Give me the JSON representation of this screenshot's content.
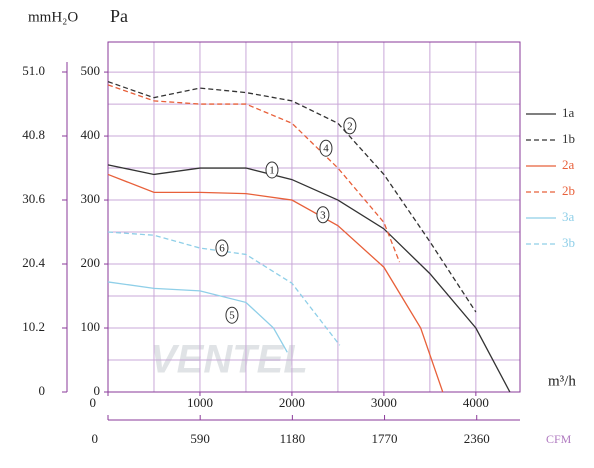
{
  "chart_data": {
    "type": "line",
    "y_unit": "Pa",
    "y2_unit": "mmH₂O",
    "x_unit": "m³/h",
    "x2_unit": "CFM",
    "watermark": "VENTEL",
    "xlim": [
      0,
      4480
    ],
    "ylim": [
      0,
      547
    ],
    "y2lim": [
      0,
      55.78
    ],
    "x2lim": [
      0,
      2637
    ],
    "xticks": [
      0,
      1000,
      2000,
      3000,
      4000
    ],
    "yticks": [
      0,
      100,
      200,
      300,
      400,
      500
    ],
    "y2ticks": [
      0,
      10.2,
      20.4,
      30.6,
      40.8,
      {
        "value": 51,
        "label": "51.0"
      }
    ],
    "x2ticks": [
      0,
      590,
      1180,
      1770,
      2360
    ],
    "xgrid": [
      500,
      1000,
      1500,
      2000,
      2500,
      3000,
      3500,
      4000
    ],
    "ygrid": [
      50,
      100,
      150,
      200,
      250,
      300,
      350,
      400,
      450,
      500
    ],
    "series": [
      {
        "name": "1a",
        "color": "#333333",
        "dash": false,
        "x": [
          0,
          500,
          1000,
          1500,
          2000,
          2500,
          3000,
          3500,
          4000,
          4370
        ],
        "values": [
          355,
          340,
          350,
          350,
          332,
          300,
          255,
          185,
          100,
          0
        ]
      },
      {
        "name": "1b",
        "color": "#333333",
        "dash": true,
        "x": [
          0,
          500,
          1000,
          1500,
          2000,
          2500,
          3000,
          3500,
          4000
        ],
        "values": [
          485,
          460,
          475,
          468,
          455,
          420,
          340,
          235,
          125
        ]
      },
      {
        "name": "2a",
        "color": "#e8603a",
        "dash": false,
        "x": [
          0,
          500,
          1000,
          1500,
          2000,
          2500,
          3000,
          3400,
          3640
        ],
        "values": [
          340,
          312,
          312,
          310,
          300,
          260,
          195,
          100,
          0
        ]
      },
      {
        "name": "2b",
        "color": "#e8603a",
        "dash": true,
        "x": [
          0,
          500,
          1000,
          1500,
          2000,
          2500,
          3000,
          3170
        ],
        "values": [
          480,
          455,
          450,
          450,
          420,
          350,
          265,
          203
        ]
      },
      {
        "name": "3a",
        "color": "#8fcfe8",
        "dash": false,
        "x": [
          0,
          500,
          1000,
          1500,
          1800,
          1950
        ],
        "values": [
          172,
          162,
          158,
          140,
          100,
          62
        ]
      },
      {
        "name": "3b",
        "color": "#8fcfe8",
        "dash": true,
        "x": [
          0,
          500,
          1000,
          1500,
          2000,
          2520
        ],
        "values": [
          250,
          245,
          225,
          215,
          170,
          73
        ]
      }
    ],
    "annotations": [
      {
        "text": "1",
        "x": 1783,
        "y": 347
      },
      {
        "text": "2",
        "x": 2630,
        "y": 416
      },
      {
        "text": "3",
        "x": 2337,
        "y": 277
      },
      {
        "text": "4",
        "x": 2370,
        "y": 381
      },
      {
        "text": "5",
        "x": 1348,
        "y": 120
      },
      {
        "text": "6",
        "x": 1239,
        "y": 225
      }
    ]
  }
}
